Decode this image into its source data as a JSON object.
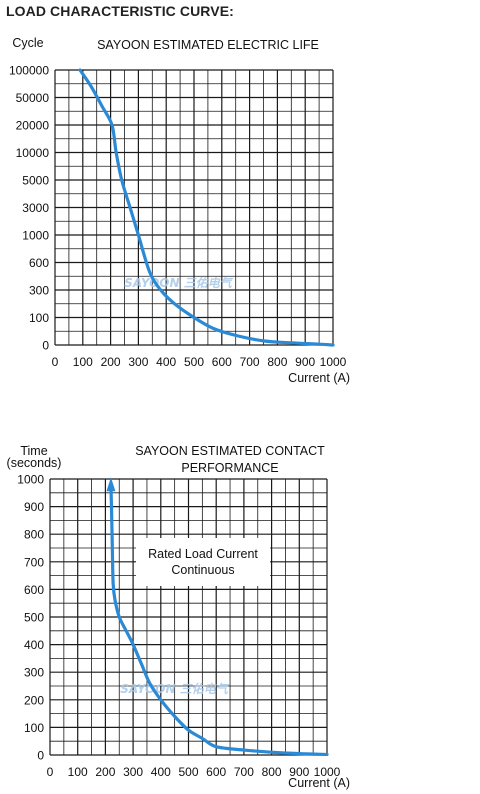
{
  "heading": "LOAD CHARACTERISTIC CURVE:",
  "colors": {
    "curve": "#2b8ad6",
    "grid": "#1a1a1a",
    "watermark": "#a9c8e8"
  },
  "chart_data": [
    {
      "type": "line",
      "title": "SAYOON ESTIMATED ELECTRIC LIFE",
      "ylabel": "Cycle",
      "xlabel": "Current (A)",
      "x_ticks": [
        "0",
        "100",
        "200",
        "300",
        "400",
        "500",
        "600",
        "700",
        "800",
        "900",
        "1000"
      ],
      "y_ticks": [
        "0",
        "100",
        "300",
        "600",
        "1000",
        "3000",
        "5000",
        "10000",
        "20000",
        "50000",
        "100000"
      ],
      "xlim": [
        0,
        1000
      ],
      "y_scale": "categorical (non-linear, equally spaced labels)",
      "grid": true,
      "watermark": "SAYOON 三佑电气",
      "series": [
        {
          "x": [
            90,
            130,
            170,
            205,
            220,
            240,
            270,
            300,
            340,
            380,
            430,
            500,
            570,
            650,
            750,
            850,
            950,
            1000
          ],
          "y": [
            100000,
            70000,
            40000,
            20000,
            10000,
            5000,
            3000,
            1000,
            500,
            300,
            200,
            100,
            60,
            35,
            15,
            8,
            3,
            0
          ]
        }
      ]
    },
    {
      "type": "line",
      "title": "SAYOON ESTIMATED CONTACT PERFORMANCE",
      "ylabel": "Time\n(seconds)",
      "xlabel": "Current (A)",
      "x_ticks": [
        "0",
        "100",
        "200",
        "300",
        "400",
        "500",
        "600",
        "700",
        "800",
        "900",
        "1000"
      ],
      "y_ticks": [
        "0",
        "100",
        "200",
        "300",
        "400",
        "500",
        "600",
        "700",
        "800",
        "900",
        "1000"
      ],
      "xlim": [
        0,
        1000
      ],
      "ylim": [
        0,
        1000
      ],
      "grid": true,
      "annotation": "Rated Load Current\nContinuous",
      "watermark": "SAYOON 三佑电气",
      "series": [
        {
          "x": [
            220,
            222,
            225,
            228,
            235,
            250,
            275,
            300,
            330,
            360,
            400,
            450,
            500,
            550,
            600,
            700,
            800,
            900,
            1000
          ],
          "y": [
            970,
            900,
            750,
            620,
            560,
            500,
            450,
            400,
            330,
            260,
            200,
            140,
            90,
            60,
            30,
            18,
            10,
            5,
            2
          ]
        }
      ]
    }
  ]
}
